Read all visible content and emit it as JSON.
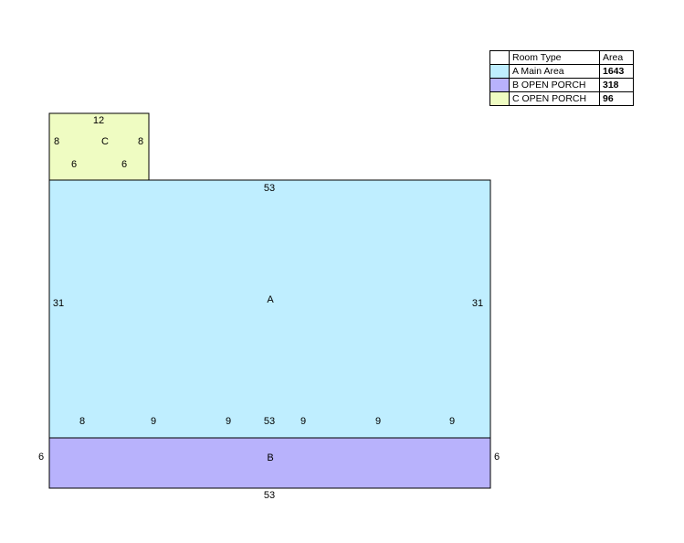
{
  "legend": {
    "header": [
      "Room Type",
      "Area"
    ],
    "rows": [
      [
        "A Main Area",
        1643
      ],
      [
        "B OPEN PORCH",
        318
      ],
      [
        "C OPEN PORCH",
        96
      ]
    ]
  },
  "rooms": [
    {
      "label": "A",
      "dimensions": [
        "53",
        "31",
        "31",
        "8",
        "9",
        "9",
        "53",
        "9",
        "9",
        "9"
      ]
    },
    {
      "label": "B",
      "dimensions": [
        "6",
        "6",
        "53"
      ]
    },
    {
      "label": "C",
      "dimensions": [
        "12",
        "8",
        "8",
        "6",
        "6"
      ]
    }
  ]
}
